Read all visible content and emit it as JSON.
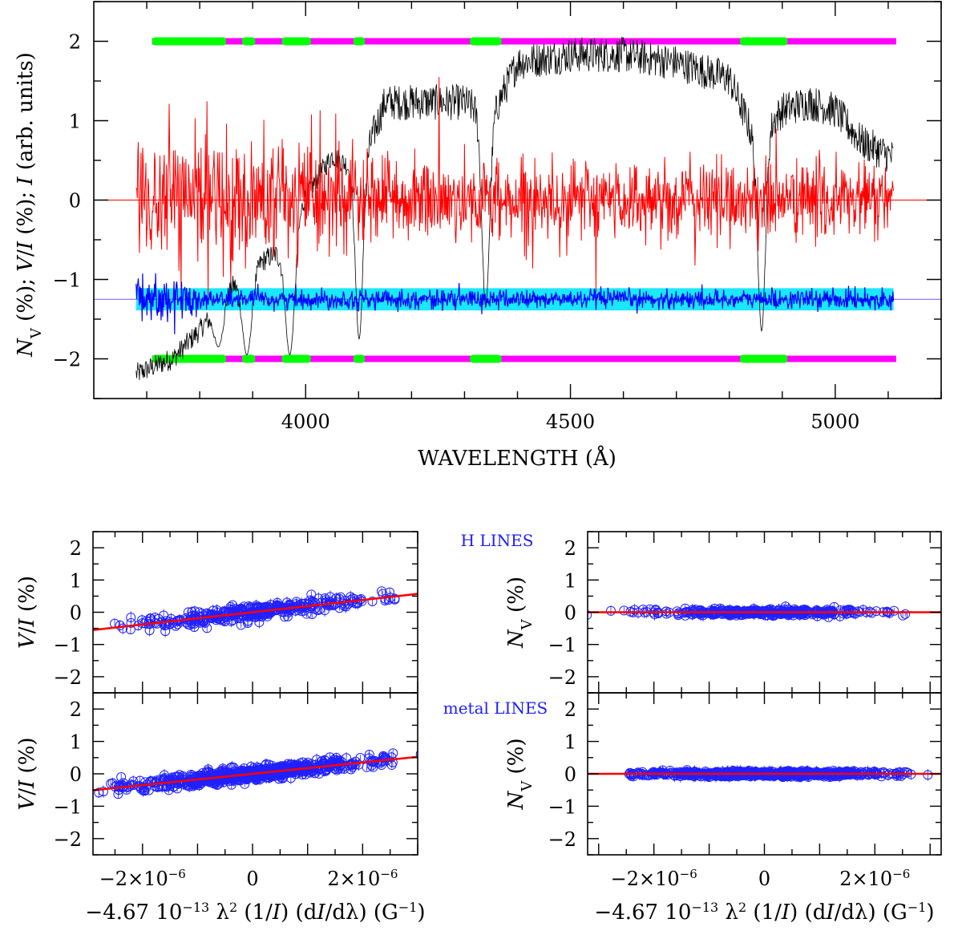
{
  "chart_data": [
    {
      "id": "spectrum",
      "type": "line",
      "xlabel": "WAVELENGTH (Å)",
      "ylabel": "N_V (%); V/I (%); I (arb. units)",
      "ylabel_parts": [
        "N",
        "V",
        " (%); ",
        "V",
        "/",
        "I",
        " (%); ",
        "I",
        " (arb. units)"
      ],
      "xlim": [
        3600,
        5200
      ],
      "ylim": [
        -2.5,
        2.5
      ],
      "xticks": [
        4000,
        4500,
        5000
      ],
      "xtick_labels": [
        "4000",
        "4500",
        "5000"
      ],
      "yticks": [
        -2,
        -1,
        0,
        1,
        2
      ],
      "ytick_labels": [
        "−2",
        "−1",
        "0",
        "1",
        "2"
      ],
      "wavelength_range": [
        3680,
        5110
      ],
      "series": [
        {
          "name": "Stokes I (black)",
          "color": "#000000",
          "envelope_x": [
            3680,
            3750,
            3800,
            3850,
            3900,
            3950,
            4000,
            4050,
            4100,
            4150,
            4200,
            4300,
            4350,
            4400,
            4500,
            4600,
            4700,
            4800,
            4850,
            4900,
            4950,
            5000,
            5050,
            5110
          ],
          "envelope_y": [
            -2.15,
            -1.95,
            -1.6,
            -1.1,
            -0.8,
            -0.6,
            0.1,
            0.6,
            0.4,
            1.3,
            1.3,
            1.3,
            1.1,
            1.8,
            1.9,
            1.9,
            1.8,
            1.6,
            0.8,
            1.2,
            1.3,
            1.2,
            0.8,
            0.6
          ],
          "absorption_lines_x": [
            3835,
            3889,
            3970,
            4101,
            4340,
            4861
          ],
          "absorption_lines_depth": [
            -1.85,
            -1.95,
            -1.95,
            -1.75,
            -1.35,
            -1.65
          ]
        },
        {
          "name": "V/I (red)",
          "color": "#ff0000",
          "center": 0.0,
          "noise_amplitude": 0.3,
          "spike_max": 1.55,
          "spike_min": -1.15
        },
        {
          "name": "N_V (blue)",
          "color": "#0000ff",
          "center": -1.25,
          "noise_amplitude": 0.06
        },
        {
          "name": "error band (cyan)",
          "color": "#00e5ff",
          "center": -1.25,
          "half_width": 0.14
        }
      ],
      "mask_bars": [
        {
          "y": 2.0,
          "colors": {
            "line": "#00ff00",
            "other": "#ff00ff"
          }
        },
        {
          "y": -2.0,
          "colors": {
            "line": "#00ff00",
            "other": "#ff00ff"
          }
        }
      ],
      "mask_range": [
        3710,
        5115
      ],
      "green_segments": [
        [
          3710,
          3850
        ],
        [
          3880,
          3905
        ],
        [
          3955,
          4010
        ],
        [
          4090,
          4112
        ],
        [
          4310,
          4370
        ],
        [
          4820,
          4910
        ]
      ]
    },
    {
      "id": "h-lines-vi",
      "type": "scatter",
      "annotation": "",
      "ylabel_parts": [
        "V",
        "/",
        "I",
        " (%)"
      ],
      "xlim": [
        -2.9e-06,
        3e-06
      ],
      "ylim": [
        -2.5,
        2.5
      ],
      "fit_slope": 190000.0,
      "fit_intercept": 0.0,
      "fit_color": "#ff0000",
      "x_spread": 1.4e-06,
      "y_noise": 0.12,
      "n_points": 350
    },
    {
      "id": "h-lines-nv",
      "type": "scatter",
      "annotation": "H LINES",
      "ylabel_parts": [
        "N",
        "V",
        " (%)"
      ],
      "xlim": [
        -3.2e-06,
        3.2e-06
      ],
      "ylim": [
        -2.5,
        2.5
      ],
      "fit_slope": 0.0,
      "fit_intercept": 0.0,
      "fit_color": "#ff0000",
      "x_spread": 1.4e-06,
      "y_noise": 0.05,
      "n_points": 350
    },
    {
      "id": "metal-lines-vi",
      "type": "scatter",
      "annotation": "",
      "ylabel_parts": [
        "V",
        "/",
        "I",
        " (%)"
      ],
      "xlim": [
        -2.9e-06,
        3e-06
      ],
      "ylim": [
        -2.5,
        2.5
      ],
      "fit_slope": 175000.0,
      "fit_intercept": 0.0,
      "fit_color": "#ff0000",
      "x_spread": 1.5e-06,
      "y_noise": 0.1,
      "n_points": 700,
      "xtick_labels": [
        "−2×10",
        "0",
        "2×10"
      ],
      "xtick_exp": "−6",
      "xlabel_parts": [
        "−4.67 10",
        "−13",
        " λ",
        "2",
        " (1/",
        "I",
        ") (d",
        "I",
        "/dλ) (G",
        "−1",
        ")"
      ]
    },
    {
      "id": "metal-lines-nv",
      "type": "scatter",
      "annotation": "metal LINES",
      "ylabel_parts": [
        "N",
        "V",
        " (%)"
      ],
      "xlim": [
        -3.2e-06,
        3.2e-06
      ],
      "ylim": [
        -2.5,
        2.5
      ],
      "fit_slope": 0.0,
      "fit_intercept": 0.0,
      "fit_color": "#ff0000",
      "x_spread": 1.5e-06,
      "y_noise": 0.04,
      "n_points": 700,
      "xtick_labels": [
        "−2×10",
        "0",
        "2×10"
      ],
      "xtick_exp": "−6",
      "xlabel_parts": [
        "−4.67 10",
        "−13",
        " λ",
        "2",
        " (1/",
        "I",
        ") (d",
        "I",
        "/dλ) (G",
        "−1",
        ")"
      ]
    }
  ],
  "small_yticks": [
    -2,
    -1,
    0,
    1,
    2
  ],
  "small_ytick_labels": [
    "−2",
    "−1",
    "0",
    "1",
    "2"
  ],
  "scatter_color": "#2020ff"
}
